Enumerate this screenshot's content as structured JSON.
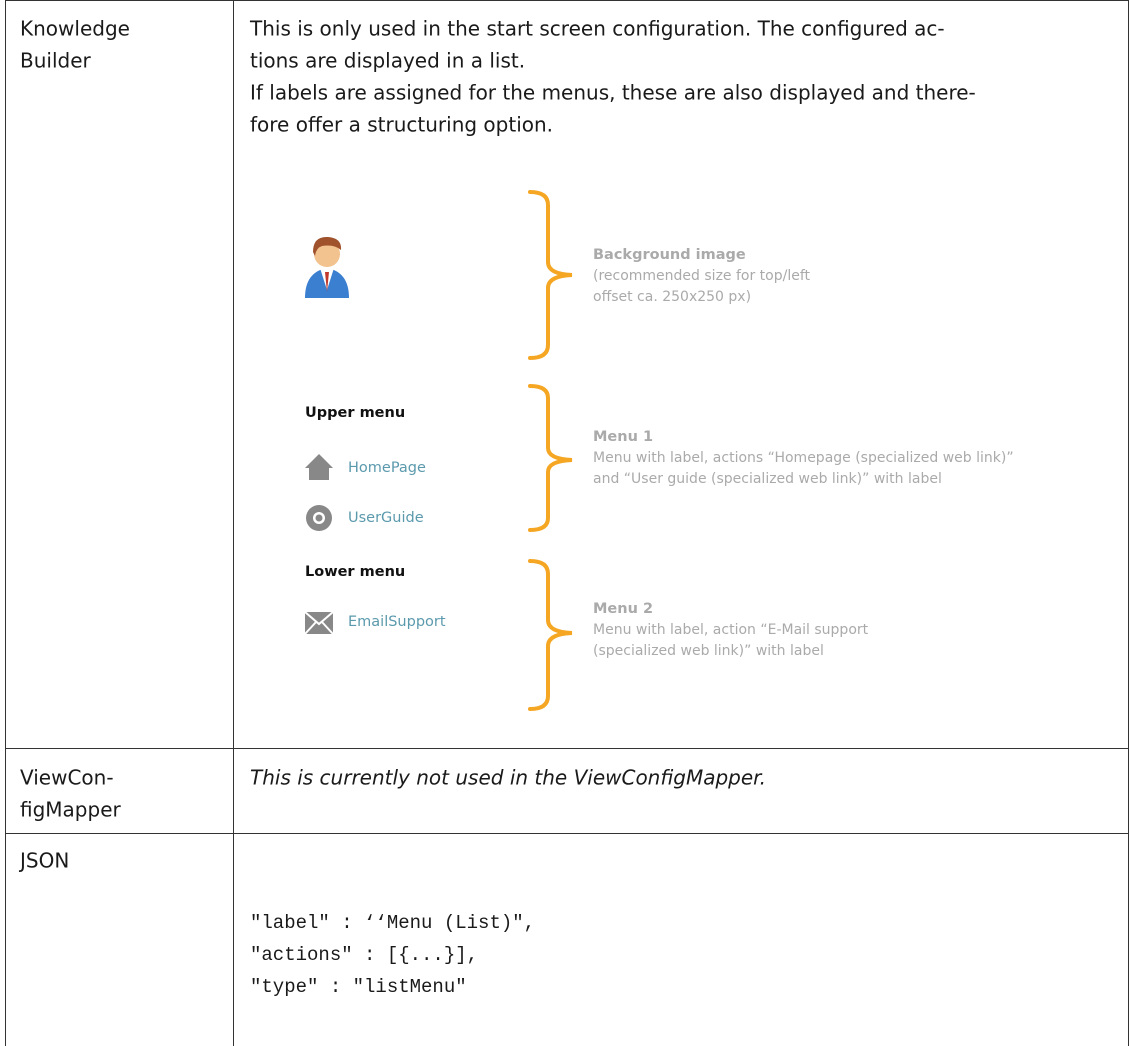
{
  "table": {
    "rows": [
      {
        "label": [
          "Knowledge",
          "Builder"
        ],
        "description": [
          "This is only used in the start screen configuration. The configured ac-",
          "tions are displayed in a list.",
          "If labels are assigned for the menus, these are also displayed and there-",
          "fore offer a structuring option."
        ],
        "figure": {
          "background": {
            "title": "Background image",
            "lines": [
              "(recommended size for top/left",
              "offset ca. 250x250 px)"
            ]
          },
          "upper_menu": {
            "title": "Upper menu",
            "items": [
              "HomePage",
              "UserGuide"
            ]
          },
          "lower_menu": {
            "title": "Lower menu",
            "items": [
              "EmailSupport"
            ]
          },
          "menu1": {
            "title": "Menu 1",
            "lines": [
              "Menu with label, actions “Homepage (specialized web link)”",
              "and “User guide (specialized web link)” with label"
            ]
          },
          "menu2": {
            "title": "Menu 2",
            "lines": [
              "Menu with label, action “E-Mail support",
              "(specialized web link)” with label"
            ]
          }
        }
      },
      {
        "label": [
          "ViewCon-",
          "figMapper"
        ],
        "description": [
          "This is currently not used in the ViewConfigMapper."
        ]
      },
      {
        "label": [
          "JSON"
        ],
        "code": [
          "\"label\" : ‘‘Menu (List)\",",
          "\"actions\" : [{...}],",
          "\"type\" : \"listMenu\""
        ]
      }
    ]
  }
}
